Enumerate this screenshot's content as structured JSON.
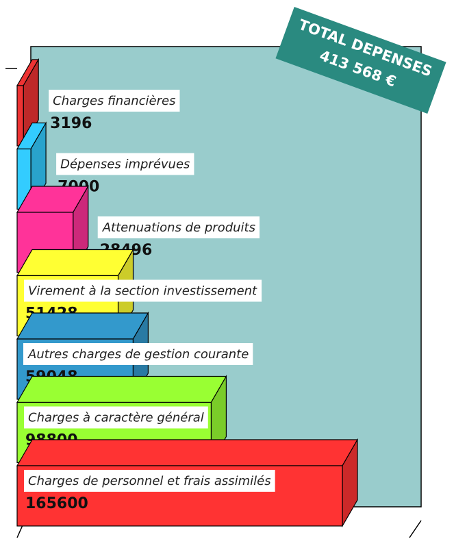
{
  "chart_data": {
    "type": "bar",
    "orientation": "horizontal",
    "title": "TOTAL DEPENSES",
    "subtitle": "413 568 €",
    "categories": [
      "Charges financières",
      "Dépenses imprévues",
      "Attenuations de produits",
      "Virement à la section investissement",
      "Autres charges de gestion courante",
      "Charges à caractère général",
      "Charges de personnel et frais assimilés"
    ],
    "values": [
      3196,
      7000,
      28496,
      51428,
      59048,
      98800,
      165600
    ],
    "colors": [
      "#ee3333",
      "#33ccff",
      "#ff3399",
      "#ffff33",
      "#3399cc",
      "#99ff33",
      "#ff3333"
    ]
  }
}
